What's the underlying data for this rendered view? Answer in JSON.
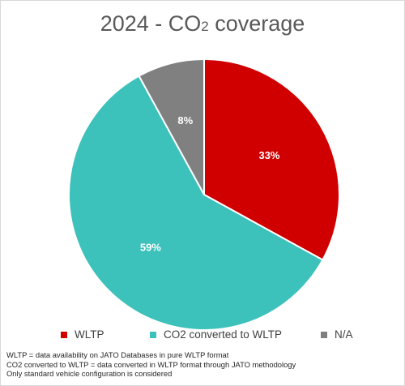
{
  "chart_data": {
    "type": "pie",
    "title": "2024 - CO",
    "title_subscript": "2",
    "title_suffix": " coverage",
    "slices": [
      {
        "name": "WLTP",
        "value": 33,
        "label": "33%",
        "color": "#d00000"
      },
      {
        "name": "CO2 converted to WLTP",
        "value": 59,
        "label": "59%",
        "color": "#3cc1bb"
      },
      {
        "name": "N/A",
        "value": 8,
        "label": "8%",
        "color": "#808080"
      }
    ],
    "legend_position": "bottom"
  },
  "notes": [
    "WLTP = data availability on JATO Databases in pure WLTP format",
    "CO2  converted to WLTP = data converted in WLTP format through JATO methodology",
    "Only standard vehicle configuration is considered"
  ]
}
